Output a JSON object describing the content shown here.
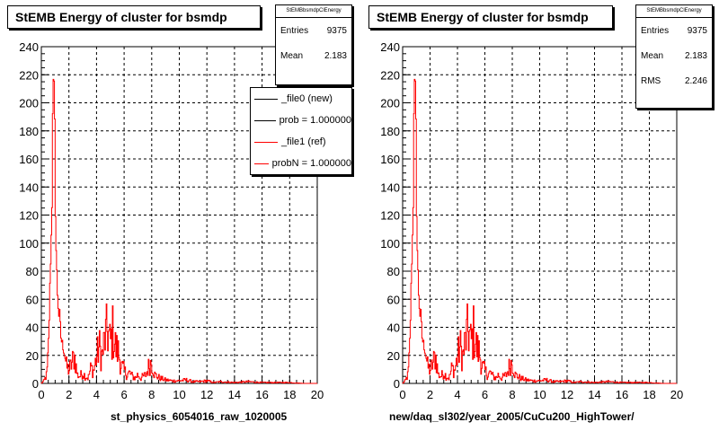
{
  "footer": "",
  "chart_data": [
    {
      "type": "histogram",
      "title": "StEMB Energy of cluster for bsmdp",
      "xlabel": "st_physics_6054016_raw_1020005",
      "ylabel": "",
      "xlim": [
        0,
        20
      ],
      "ylim": [
        0,
        240
      ],
      "x_ticks": [
        "0",
        "2",
        "4",
        "6",
        "8",
        "10",
        "12",
        "14",
        "16",
        "18",
        "20"
      ],
      "y_ticks": [
        "0",
        "20",
        "40",
        "60",
        "80",
        "100",
        "120",
        "140",
        "160",
        "180",
        "200",
        "220",
        "240"
      ],
      "grid": true,
      "stats": {
        "header": "StEMBbsmdpClEnergy",
        "rows": [
          {
            "label": "Entries",
            "value": "9375"
          },
          {
            "label": "Mean",
            "value": "2.183"
          }
        ]
      },
      "legend": [
        {
          "label": "_file0 (new)",
          "color": "#000000"
        },
        {
          "label": "prob = 1.000000",
          "color": "#000000"
        },
        {
          "label": "_file1 (ref)",
          "color": "#ff0000"
        },
        {
          "label": "probN = 1.000000",
          "color": "#ff0000"
        }
      ],
      "series": [
        {
          "name": "_file0 (new)",
          "color": "#000000"
        },
        {
          "name": "_file1 (ref)",
          "color": "#ff0000"
        }
      ],
      "envelope": [
        [
          0.0,
          0
        ],
        [
          0.2,
          3
        ],
        [
          0.4,
          10
        ],
        [
          0.5,
          30
        ],
        [
          0.6,
          70
        ],
        [
          0.7,
          128
        ],
        [
          0.8,
          180
        ],
        [
          0.9,
          229
        ],
        [
          1.0,
          175
        ],
        [
          1.1,
          110
        ],
        [
          1.2,
          75
        ],
        [
          1.4,
          45
        ],
        [
          1.6,
          30
        ],
        [
          1.8,
          20
        ],
        [
          2.0,
          15
        ],
        [
          2.2,
          22
        ],
        [
          2.4,
          32
        ],
        [
          2.6,
          10
        ],
        [
          2.8,
          8
        ],
        [
          3.0,
          12
        ],
        [
          3.2,
          8
        ],
        [
          3.4,
          6
        ],
        [
          3.6,
          18
        ],
        [
          3.8,
          14
        ],
        [
          4.0,
          30
        ],
        [
          4.2,
          42
        ],
        [
          4.4,
          30
        ],
        [
          4.6,
          50
        ],
        [
          4.8,
          61
        ],
        [
          5.0,
          45
        ],
        [
          5.2,
          60
        ],
        [
          5.4,
          40
        ],
        [
          5.6,
          35
        ],
        [
          5.8,
          20
        ],
        [
          6.0,
          15
        ],
        [
          6.2,
          10
        ],
        [
          6.4,
          12
        ],
        [
          6.6,
          8
        ],
        [
          6.8,
          6
        ],
        [
          7.0,
          10
        ],
        [
          7.2,
          6
        ],
        [
          7.4,
          8
        ],
        [
          7.6,
          10
        ],
        [
          7.8,
          20
        ],
        [
          8.0,
          25
        ],
        [
          8.2,
          10
        ],
        [
          8.6,
          6
        ],
        [
          9.0,
          4
        ],
        [
          9.5,
          3
        ],
        [
          10,
          3
        ],
        [
          10.5,
          4
        ],
        [
          11,
          2
        ],
        [
          11.5,
          2
        ],
        [
          12,
          3
        ],
        [
          12.5,
          1
        ],
        [
          13,
          2
        ],
        [
          14,
          1
        ],
        [
          15,
          2
        ],
        [
          16,
          1
        ],
        [
          17,
          1
        ],
        [
          18,
          1
        ],
        [
          19,
          0
        ],
        [
          20,
          0
        ]
      ]
    },
    {
      "type": "histogram",
      "title": "StEMB Energy of cluster for bsmdp",
      "xlabel": "new/daq_sl302/year_2005/CuCu200_HighTower/",
      "ylabel": "",
      "xlim": [
        0,
        20
      ],
      "ylim": [
        0,
        240
      ],
      "x_ticks": [
        "0",
        "2",
        "4",
        "6",
        "8",
        "10",
        "12",
        "14",
        "16",
        "18",
        "20"
      ],
      "y_ticks": [
        "0",
        "20",
        "40",
        "60",
        "80",
        "100",
        "120",
        "140",
        "160",
        "180",
        "200",
        "220",
        "240"
      ],
      "grid": true,
      "stats": {
        "header": "StEMBbsmdpClEnergy",
        "rows": [
          {
            "label": "Entries",
            "value": "9375"
          },
          {
            "label": "Mean",
            "value": "2.183"
          },
          {
            "label": "RMS",
            "value": "2.246"
          }
        ]
      },
      "series": [
        {
          "name": "",
          "color": "#ff0000"
        }
      ],
      "envelope": [
        [
          0.0,
          0
        ],
        [
          0.2,
          3
        ],
        [
          0.4,
          10
        ],
        [
          0.5,
          30
        ],
        [
          0.6,
          70
        ],
        [
          0.7,
          128
        ],
        [
          0.8,
          180
        ],
        [
          0.9,
          229
        ],
        [
          1.0,
          175
        ],
        [
          1.1,
          110
        ],
        [
          1.2,
          75
        ],
        [
          1.4,
          45
        ],
        [
          1.6,
          30
        ],
        [
          1.8,
          20
        ],
        [
          2.0,
          15
        ],
        [
          2.2,
          22
        ],
        [
          2.4,
          32
        ],
        [
          2.6,
          10
        ],
        [
          2.8,
          8
        ],
        [
          3.0,
          12
        ],
        [
          3.2,
          8
        ],
        [
          3.4,
          6
        ],
        [
          3.6,
          18
        ],
        [
          3.8,
          14
        ],
        [
          4.0,
          30
        ],
        [
          4.2,
          42
        ],
        [
          4.4,
          30
        ],
        [
          4.6,
          50
        ],
        [
          4.8,
          61
        ],
        [
          5.0,
          45
        ],
        [
          5.2,
          60
        ],
        [
          5.4,
          40
        ],
        [
          5.6,
          35
        ],
        [
          5.8,
          20
        ],
        [
          6.0,
          15
        ],
        [
          6.2,
          10
        ],
        [
          6.4,
          12
        ],
        [
          6.6,
          8
        ],
        [
          6.8,
          6
        ],
        [
          7.0,
          10
        ],
        [
          7.2,
          6
        ],
        [
          7.4,
          8
        ],
        [
          7.6,
          10
        ],
        [
          7.8,
          20
        ],
        [
          8.0,
          25
        ],
        [
          8.2,
          10
        ],
        [
          8.6,
          6
        ],
        [
          9.0,
          4
        ],
        [
          9.5,
          3
        ],
        [
          10,
          3
        ],
        [
          10.5,
          4
        ],
        [
          11,
          2
        ],
        [
          11.5,
          2
        ],
        [
          12,
          3
        ],
        [
          12.5,
          1
        ],
        [
          13,
          2
        ],
        [
          14,
          1
        ],
        [
          15,
          2
        ],
        [
          16,
          1
        ],
        [
          17,
          1
        ],
        [
          18,
          1
        ],
        [
          19,
          0
        ],
        [
          20,
          0
        ]
      ]
    }
  ]
}
